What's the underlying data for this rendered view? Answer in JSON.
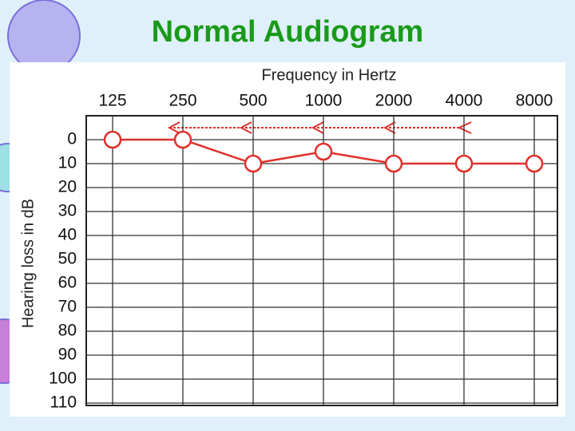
{
  "chart_data": {
    "type": "line",
    "title": "Normal Audiogram",
    "x_label": "Frequency in Hertz",
    "y_label": "Hearing loss in dB",
    "categories": [
      "125",
      "250",
      "500",
      "1000",
      "2000",
      "4000",
      "8000"
    ],
    "values": [
      0,
      0,
      10,
      5,
      10,
      10,
      10
    ],
    "color": "#e0302a",
    "ylim": [
      -10,
      110
    ],
    "y_inverted": true,
    "yticks": [
      0,
      10,
      20,
      30,
      40,
      50,
      60,
      70,
      80,
      90,
      100,
      110
    ],
    "grid": true
  }
}
